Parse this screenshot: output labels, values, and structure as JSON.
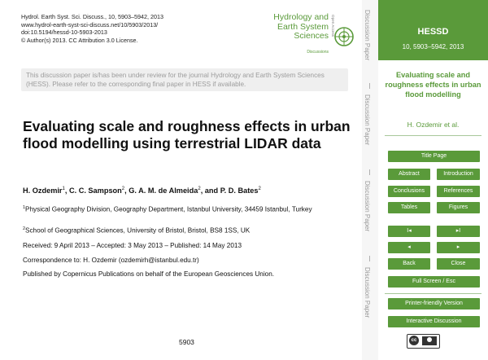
{
  "journal_meta": {
    "line1": "Hydrol. Earth Syst. Sci. Discuss., 10, 5903–5942, 2013",
    "line2": "www.hydrol-earth-syst-sci-discuss.net/10/5903/2013/",
    "line3": "doi:10.5194/hessd-10-5903-2013",
    "line4": "© Author(s) 2013. CC Attribution 3.0 License."
  },
  "logo": {
    "line1": "Hydrology and",
    "line2": "Earth System",
    "line3": "Sciences",
    "sub": "Discussions",
    "open_access": "Open Access"
  },
  "notice": "This discussion paper is/has been under review for the journal Hydrology and Earth System Sciences (HESS). Please refer to the corresponding final paper in HESS if available.",
  "paper": {
    "title": "Evaluating scale and roughness effects in urban flood modelling using terrestrial LIDAR data",
    "authors": [
      {
        "name": "H. Ozdemir",
        "sup": "1",
        "sep": ", "
      },
      {
        "name": "C. C. Sampson",
        "sup": "2",
        "sep": ", "
      },
      {
        "name": "G. A. M. de Almeida",
        "sup": "2",
        "sep": ", and "
      },
      {
        "name": "P. D. Bates",
        "sup": "2",
        "sep": ""
      }
    ],
    "affiliation1_sup": "1",
    "affiliation1": "Physical Geography Division, Geography Department, Istanbul University, 34459 Istanbul, Turkey",
    "affiliation2_sup": "2",
    "affiliation2": "School of Geographical Sciences, University of Bristol, Bristol, BS8 1SS, UK",
    "received": "Received: 9 April 2013 – Accepted: 3 May 2013 – Published: 14 May 2013",
    "correspondence": "Correspondence to: H. Ozdemir (ozdemirh@istanbul.edu.tr)",
    "published_by": "Published by Copernicus Publications on behalf of the European Geosciences Union.",
    "page_number": "5903"
  },
  "side_labels": [
    "Discussion Paper",
    "Discussion Paper",
    "Discussion Paper",
    "Discussion Paper"
  ],
  "sidebar": {
    "journal": "HESSD",
    "ref": "10, 5903–5942, 2013",
    "short_title": "Evaluating scale and roughness effects in urban flood modelling",
    "author": "H. Ozdemir et al.",
    "buttons": {
      "title_page": "Title Page",
      "abstract": "Abstract",
      "introduction": "Introduction",
      "conclusions": "Conclusions",
      "references": "References",
      "tables": "Tables",
      "figures": "Figures",
      "first": "I◂",
      "last": "▸I",
      "prev": "◂",
      "next": "▸",
      "back": "Back",
      "close": "Close",
      "full_screen": "Full Screen / Esc",
      "printer": "Printer-friendly Version",
      "interactive": "Interactive Discussion"
    },
    "cc_label": "cc"
  },
  "colors": {
    "accent": "#5a9a3a",
    "notice_bg": "#efefef",
    "notice_text": "#9c9c9c"
  }
}
